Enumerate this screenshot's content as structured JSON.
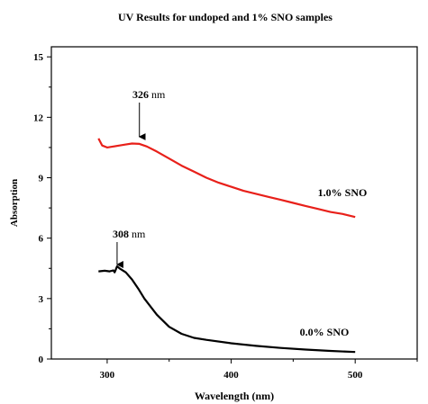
{
  "chart_data": {
    "type": "line",
    "title": "UV Results for undoped and 1% SNO samples",
    "xlabel": "Wavelength (nm)",
    "ylabel": "Absorption",
    "xlim": [
      255,
      550
    ],
    "ylim": [
      0,
      15.5
    ],
    "xticks": [
      300,
      400,
      500
    ],
    "yticks": [
      0,
      3,
      6,
      9,
      12,
      15
    ],
    "xtick_labels": [
      "300",
      "400",
      "500"
    ],
    "ytick_labels": [
      "0",
      "3",
      "6",
      "9",
      "12",
      "15"
    ],
    "grid": false,
    "legend": "none",
    "series": [
      {
        "label": "1.0% SNO",
        "color": "#e8201a",
        "x": [
          293,
          296,
          300,
          305,
          310,
          315,
          320,
          326,
          332,
          340,
          350,
          360,
          370,
          380,
          390,
          400,
          410,
          420,
          430,
          440,
          450,
          460,
          470,
          480,
          490,
          500
        ],
        "y": [
          10.95,
          10.6,
          10.5,
          10.55,
          10.6,
          10.65,
          10.7,
          10.68,
          10.55,
          10.3,
          9.95,
          9.6,
          9.3,
          9.0,
          8.75,
          8.55,
          8.35,
          8.2,
          8.05,
          7.9,
          7.75,
          7.6,
          7.45,
          7.3,
          7.2,
          7.05
        ]
      },
      {
        "label": "0.0% SNO",
        "color": "#000000",
        "x": [
          293,
          298,
          302,
          305,
          306,
          307,
          308,
          309,
          310,
          315,
          320,
          325,
          330,
          340,
          350,
          360,
          370,
          380,
          400,
          420,
          440,
          460,
          480,
          500
        ],
        "y": [
          4.35,
          4.38,
          4.35,
          4.4,
          4.3,
          4.45,
          4.6,
          4.55,
          4.5,
          4.3,
          3.95,
          3.5,
          3.0,
          2.2,
          1.6,
          1.25,
          1.05,
          0.95,
          0.78,
          0.65,
          0.55,
          0.47,
          0.4,
          0.35
        ]
      }
    ],
    "annotations": [
      {
        "value": "326",
        "unit": "nm",
        "x": 326,
        "y": 10.68
      },
      {
        "value": "308",
        "unit": "nm",
        "x": 308,
        "y": 4.6
      }
    ]
  }
}
